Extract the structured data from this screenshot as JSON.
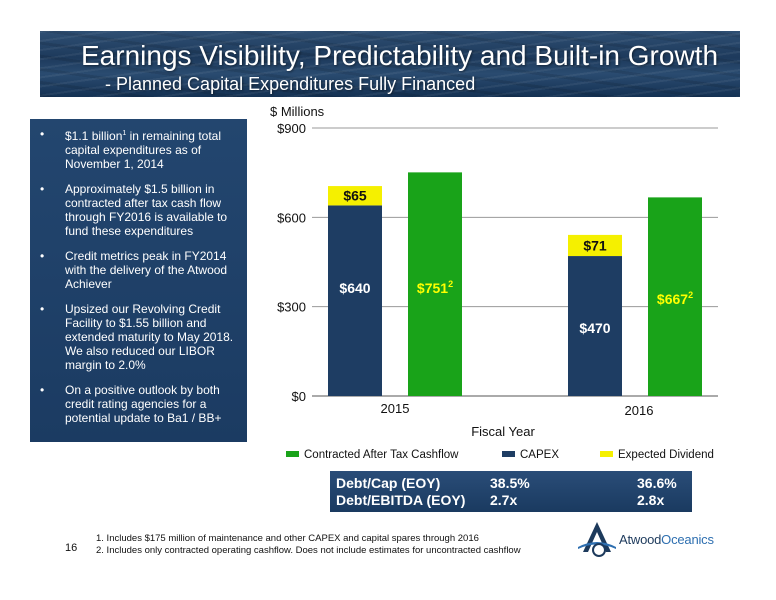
{
  "title": "Earnings Visibility, Predictability and Built-in Growth",
  "subtitle": "- Planned Capital Expenditures Fully Financed",
  "bullets": [
    {
      "pre": "$1.1 billion",
      "sup": "1",
      "post": " in remaining total capital expenditures as of November 1, 2014"
    },
    {
      "pre": "Approximately $1.5 billion in contracted after tax cash flow through FY2016 is available to fund these expenditures",
      "sup": "",
      "post": ""
    },
    {
      "pre": "Credit metrics peak in FY2014 with the delivery of the Atwood Achiever",
      "sup": "",
      "post": ""
    },
    {
      "pre": "Upsized our Revolving Credit Facility to $1.55 billion and extended maturity to May 2018. We also reduced our LIBOR margin to 2.0%",
      "sup": "",
      "post": ""
    },
    {
      "pre": "On a positive outlook by both credit rating agencies for a potential update to Ba1 / BB+",
      "sup": "",
      "post": ""
    }
  ],
  "bullet_symbol": "•",
  "chart_data": {
    "type": "bar",
    "ylabel": "$ Millions",
    "xlabel": "Fiscal Year",
    "categories": [
      "2015",
      "2016"
    ],
    "ylim": [
      0,
      900
    ],
    "yticks": [
      0,
      300,
      600,
      900
    ],
    "ytick_labels": [
      "$0",
      "$300",
      "$600",
      "$900"
    ],
    "grid": true,
    "stacked_bar": {
      "series": [
        {
          "name": "CAPEX",
          "values": [
            640,
            470
          ],
          "labels": [
            "$640",
            "$470"
          ],
          "color": "#1e3d63"
        },
        {
          "name": "Expected Dividend",
          "values": [
            65,
            71
          ],
          "labels": [
            "$65",
            "$71"
          ],
          "color": "#f5f000"
        }
      ]
    },
    "side_bar": {
      "name": "Contracted After Tax Cashflow",
      "values": [
        751,
        667
      ],
      "labels": [
        "$751",
        "$667"
      ],
      "label_sup": "2",
      "color": "#19a319"
    },
    "legend": [
      {
        "name": "Contracted After Tax Cashflow",
        "color": "#19a319"
      },
      {
        "name": "CAPEX",
        "color": "#1e3d63"
      },
      {
        "name": "Expected Dividend",
        "color": "#f5f000"
      }
    ],
    "legend_position": "bottom"
  },
  "metrics": {
    "rows": [
      {
        "label": "Debt/Cap (EOY)",
        "v2015": "38.5%",
        "v2016": "36.6%"
      },
      {
        "label": "Debt/EBITDA (EOY)",
        "v2015": "2.7x",
        "v2016": "2.8x"
      }
    ]
  },
  "page_number": "16",
  "footnotes": [
    "1.   Includes $175 million of maintenance and other CAPEX and capital spares through 2016",
    "2.   Includes only contracted operating cashflow.  Does not include estimates for uncontracted cashflow"
  ],
  "logo": {
    "part1": "Atwood",
    "part2": "Oceanics"
  }
}
